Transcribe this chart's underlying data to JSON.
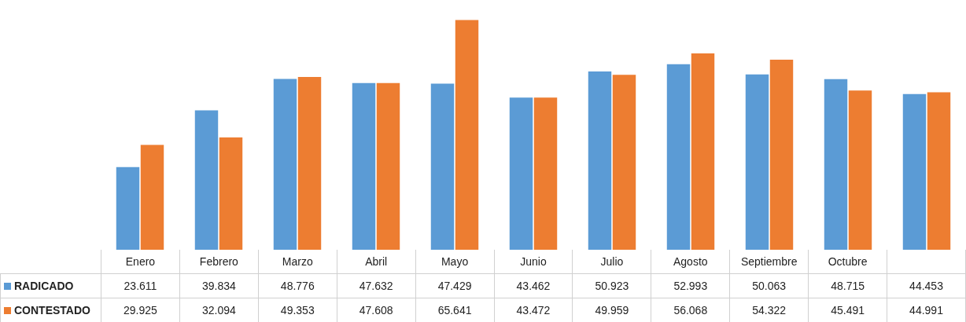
{
  "chart_data": {
    "type": "bar",
    "categories": [
      "Enero",
      "Febrero",
      "Marzo",
      "Abril",
      "Mayo",
      "Junio",
      "Julio",
      "Agosto",
      "Septiembre",
      "Octubre",
      null
    ],
    "series": [
      {
        "name": "RADICADO",
        "color": "#5b9bd5",
        "values": [
          23.611,
          39.834,
          48.776,
          47.632,
          47.429,
          43.462,
          50.923,
          52.993,
          50.063,
          48.715,
          44.453
        ],
        "value_labels": [
          "23.611",
          "39.834",
          "48.776",
          "47.632",
          "47.429",
          "43.462",
          "50.923",
          "52.993",
          "50.063",
          "48.715",
          "44.453"
        ]
      },
      {
        "name": "CONTESTADO",
        "color": "#ed7d31",
        "values": [
          29.925,
          32.094,
          49.353,
          47.608,
          65.641,
          43.472,
          49.959,
          56.068,
          54.322,
          45.491,
          44.991
        ],
        "value_labels": [
          "29.925",
          "32.094",
          "49.353",
          "47.608",
          "65.641",
          "43.472",
          "49.959",
          "56.068",
          "54.322",
          "45.491",
          "44.991"
        ]
      }
    ],
    "grid": false,
    "legend": "bottom left"
  }
}
